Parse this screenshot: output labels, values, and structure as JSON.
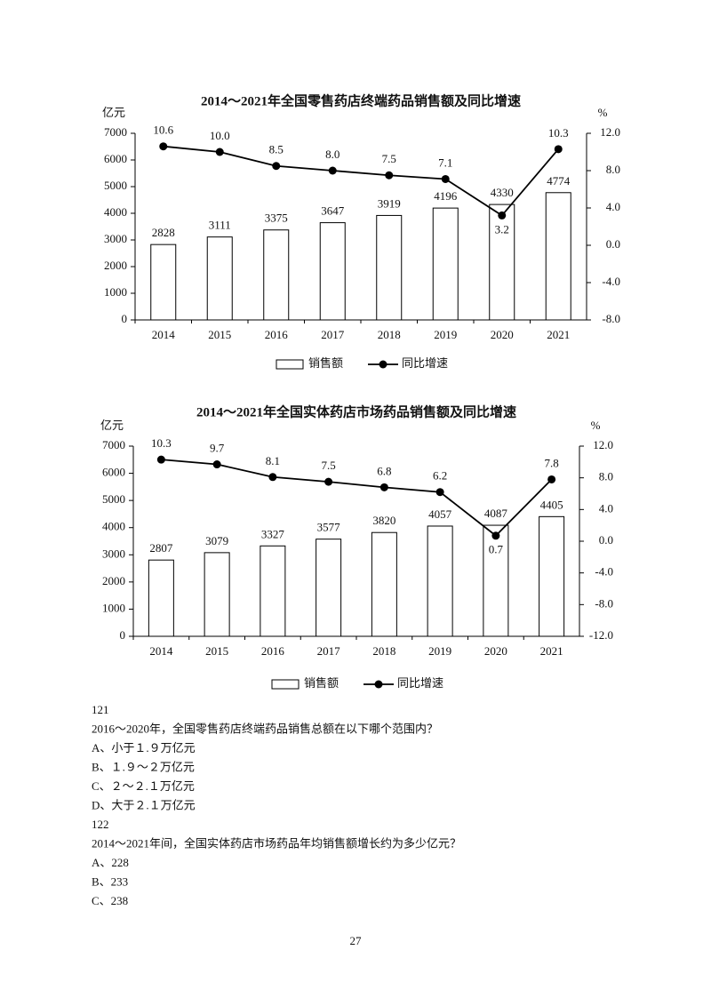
{
  "chart_data": [
    {
      "type": "bar_line",
      "title": "2014～2021年全国零售药店终端药品销售额及同比增速",
      "y_label": "亿元",
      "y2_label": "%",
      "categories": [
        "2014",
        "2015",
        "2016",
        "2017",
        "2018",
        "2019",
        "2020",
        "2021"
      ],
      "series": [
        {
          "name": "销售额",
          "type": "bar",
          "color": "#000000",
          "values": [
            2828,
            3111,
            3375,
            3647,
            3919,
            4196,
            4330,
            4774
          ]
        },
        {
          "name": "同比增速",
          "type": "line",
          "axis": "y2",
          "color": "#000000",
          "values": [
            10.6,
            10.0,
            8.5,
            8.0,
            7.5,
            7.1,
            3.2,
            10.3
          ],
          "value_labels": [
            "10.6",
            "10.0",
            "8.5",
            "8.0",
            "7.5",
            "7.1",
            "3.2",
            "10.3"
          ]
        }
      ],
      "ylim": [
        0,
        7000
      ],
      "yticks": [
        0,
        1000,
        2000,
        3000,
        4000,
        5000,
        6000,
        7000
      ],
      "y2lim": [
        -8,
        12
      ],
      "y2ticks": [
        {
          "value": -8,
          "label": "-8.0"
        },
        {
          "value": -4,
          "label": "-4.0"
        },
        {
          "value": 0,
          "label": "0.0"
        },
        {
          "value": 4,
          "label": "4.0"
        },
        {
          "value": 8,
          "label": "8.0"
        },
        {
          "value": 12,
          "label": "12.0"
        }
      ],
      "legend": "bottom"
    },
    {
      "type": "bar_line",
      "title": "2014～2021年全国实体药店市场药品销售额及同比增速",
      "y_label": "亿元",
      "y2_label": "%",
      "categories": [
        "2014",
        "2015",
        "2016",
        "2017",
        "2018",
        "2019",
        "2020",
        "2021"
      ],
      "series": [
        {
          "name": "销售额",
          "type": "bar",
          "color": "#000000",
          "values": [
            2807,
            3079,
            3327,
            3577,
            3820,
            4057,
            4087,
            4405
          ]
        },
        {
          "name": "同比增速",
          "type": "line",
          "axis": "y2",
          "color": "#000000",
          "values": [
            10.3,
            9.7,
            8.1,
            7.5,
            6.8,
            6.2,
            0.7,
            7.8
          ]
        }
      ],
      "ylim": [
        0,
        7000
      ],
      "yticks": [
        0,
        1000,
        2000,
        3000,
        4000,
        5000,
        6000,
        7000
      ],
      "y2lim": [
        -12,
        12
      ],
      "y2ticks": [
        {
          "value": -12,
          "label": "-12.0"
        },
        {
          "value": -8,
          "label": "-8.0"
        },
        {
          "value": -4,
          "label": "-4.0"
        },
        {
          "value": 0,
          "label": "0.0"
        },
        {
          "value": 4,
          "label": "4.0"
        },
        {
          "value": 8,
          "label": "8.0"
        },
        {
          "value": 12,
          "label": "12.0"
        }
      ],
      "legend": "bottom"
    }
  ],
  "questions": [
    {
      "number": "121",
      "stem": "2016～2020年，全国零售药店终端药品销售总额在以下哪个范围内？",
      "options": [
        "A、小于１.９万亿元",
        "B、１.９～２万亿元",
        "C、２～２.１万亿元",
        "D、大于２.１万亿元"
      ]
    },
    {
      "number": "122",
      "stem": "2014～2021年间，全国实体药店市场药品年均销售额增长约为多少亿元？",
      "options": [
        "A、228",
        "B、233",
        "C、238"
      ]
    }
  ],
  "page_number": "27"
}
